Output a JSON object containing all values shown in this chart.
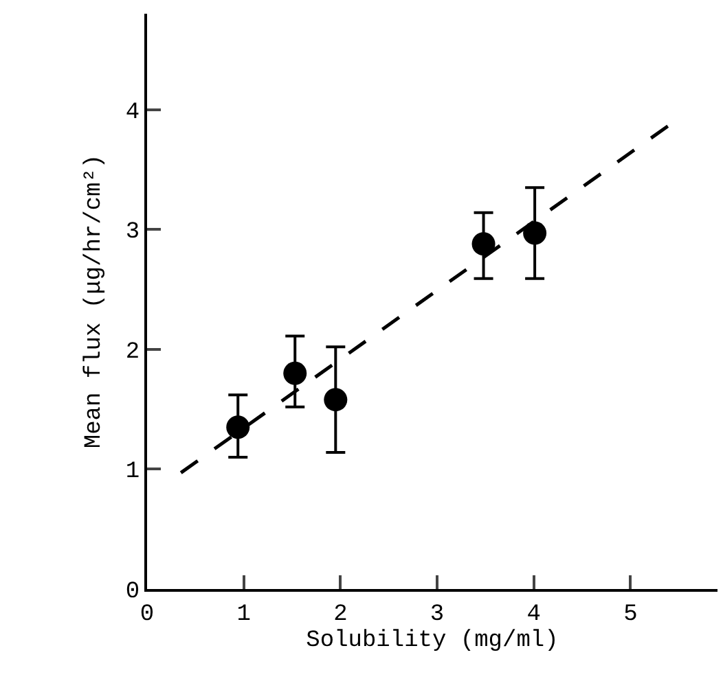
{
  "chart_data": {
    "type": "scatter",
    "xlabel": "Solubility (mg/ml)",
    "ylabel": "Mean flux (μg/hr/cm²)",
    "x": [
      0.94,
      1.53,
      1.95,
      3.48,
      4.01
    ],
    "xlim": [
      0,
      5.9
    ],
    "ylim": [
      0,
      4.8
    ],
    "xticks": [
      0,
      1,
      2,
      3,
      4,
      5
    ],
    "yticks": [
      0,
      1,
      2,
      3,
      4
    ],
    "legend": false,
    "series": [
      {
        "marker": "circle",
        "color": "#000000",
        "values": [
          1.35,
          1.8,
          1.58,
          2.88,
          2.97
        ],
        "errors": [
          [
            1.1,
            1.62
          ],
          [
            1.52,
            2.11
          ],
          [
            1.14,
            2.02
          ],
          [
            2.59,
            3.14
          ],
          [
            2.59,
            3.35
          ]
        ]
      },
      {
        "type": "line",
        "color": "#000000",
        "x": [
          0.35,
          5.4
        ],
        "values": [
          0.97,
          3.87
        ],
        "line_style": "dashed",
        "marker": "none"
      }
    ]
  }
}
